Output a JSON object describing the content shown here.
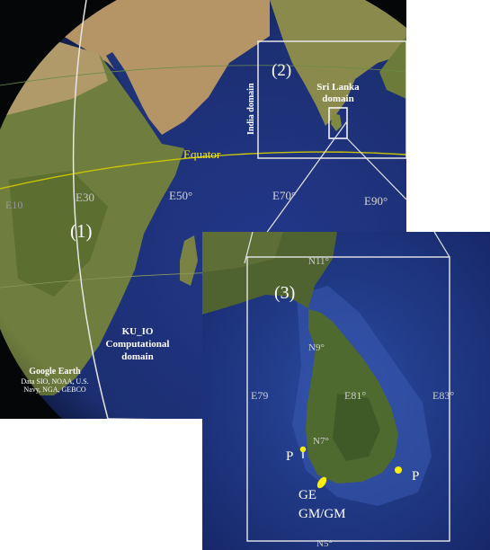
{
  "globe": {
    "equator_label": "Equator",
    "longitudes": [
      "E10",
      "E30",
      "E50°",
      "E70°",
      "E90°"
    ],
    "domain1_tag": "(1)",
    "domain2_tag": "(2)",
    "india_domain_label": "India domain",
    "sri_lanka_domain_label_line1": "Sri Lanka",
    "sri_lanka_domain_label_line2": "domain",
    "computational_label_line1": "KU_IO",
    "computational_label_line2": "Computational",
    "computational_label_line3": "domain",
    "credit_brand": "Google Earth",
    "credit_sources_line1": "Data SIO, NOAA, U.S.",
    "credit_sources_line2": "Navy, NGA, GEBCO"
  },
  "inset": {
    "domain3_tag": "(3)",
    "latitudes": [
      "N11°",
      "N9°",
      "N7°",
      "N5°"
    ],
    "longitudes": [
      "E79",
      "E81°",
      "E83°"
    ],
    "station_left": "P",
    "station_right": "P",
    "station_south_line1": "GE",
    "station_south_line2": "GM/GM",
    "marker_color": "#ffee00",
    "frame_color": "#e8e8e8"
  },
  "colors": {
    "ocean_deep": "#1c2f72",
    "land": "#6b7a3c",
    "desert": "#b89a64",
    "label_white": "#ffffff",
    "equator": "#d9d200"
  }
}
